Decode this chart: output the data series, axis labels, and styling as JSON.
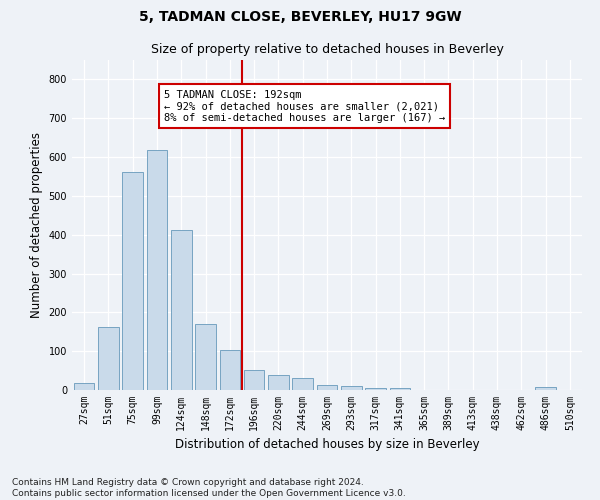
{
  "title": "5, TADMAN CLOSE, BEVERLEY, HU17 9GW",
  "subtitle": "Size of property relative to detached houses in Beverley",
  "xlabel": "Distribution of detached houses by size in Beverley",
  "ylabel": "Number of detached properties",
  "bar_color": "#c9daea",
  "bar_edge_color": "#6699bb",
  "highlight_color": "#cc0000",
  "property_label": "5 TADMAN CLOSE: 192sqm",
  "annotation_line1": "← 92% of detached houses are smaller (2,021)",
  "annotation_line2": "8% of semi-detached houses are larger (167) →",
  "categories": [
    "27sqm",
    "51sqm",
    "75sqm",
    "99sqm",
    "124sqm",
    "148sqm",
    "172sqm",
    "196sqm",
    "220sqm",
    "244sqm",
    "269sqm",
    "293sqm",
    "317sqm",
    "341sqm",
    "365sqm",
    "389sqm",
    "413sqm",
    "438sqm",
    "462sqm",
    "486sqm",
    "510sqm"
  ],
  "values": [
    18,
    163,
    562,
    617,
    411,
    171,
    103,
    51,
    38,
    30,
    14,
    10,
    5,
    5,
    0,
    0,
    0,
    0,
    0,
    7,
    0
  ],
  "ylim": [
    0,
    850
  ],
  "yticks": [
    0,
    100,
    200,
    300,
    400,
    500,
    600,
    700,
    800
  ],
  "vline_index": 7,
  "footnote1": "Contains HM Land Registry data © Crown copyright and database right 2024.",
  "footnote2": "Contains public sector information licensed under the Open Government Licence v3.0.",
  "background_color": "#eef2f7",
  "grid_color": "#ffffff",
  "title_fontsize": 10,
  "subtitle_fontsize": 9,
  "axis_label_fontsize": 8.5,
  "tick_fontsize": 7,
  "footnote_fontsize": 6.5,
  "annotation_fontsize": 7.5
}
